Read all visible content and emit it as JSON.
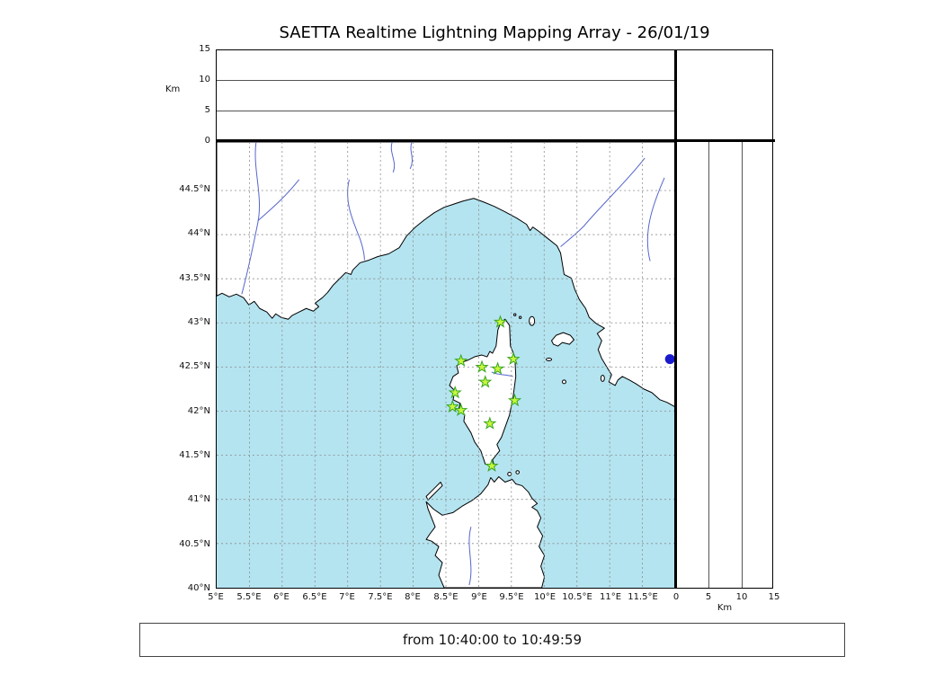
{
  "title": "SAETTA Realtime Lightning Mapping Array - 26/01/19",
  "time_range_label": "from 10:40:00 to 10:49:59",
  "top_panel": {
    "axis_label": "Km",
    "ticks": [
      "0",
      "5",
      "10",
      "15"
    ]
  },
  "right_panel": {
    "axis_label": "Km",
    "ticks": [
      "0",
      "5",
      "10",
      "15"
    ]
  },
  "map": {
    "lat_ticks": [
      "44.5°N",
      "44°N",
      "43.5°N",
      "43°N",
      "42.5°N",
      "42°N",
      "41.5°N",
      "41°N",
      "40.5°N",
      "40°N"
    ],
    "lon_ticks": [
      "5°E",
      "5.5°E",
      "6°E",
      "6.5°E",
      "7°E",
      "7.5°E",
      "8°E",
      "8.5°E",
      "9°E",
      "9.5°E",
      "10°E",
      "10.5°E",
      "11°E",
      "11.5°E"
    ],
    "lon_range": [
      5.0,
      12.0
    ],
    "lat_range": [
      40.0,
      45.05
    ],
    "sea_color": "#b4e4f0",
    "land_color": "#ffffff",
    "grid_color": "#8a8a8a",
    "river_color": "#5566cc",
    "station_fill": "#c8f73c",
    "station_stroke": "#35a520",
    "event_color": "#1a1acd",
    "stations": [
      {
        "lon": 9.33,
        "lat": 43.01
      },
      {
        "lon": 8.73,
        "lat": 42.57
      },
      {
        "lon": 9.05,
        "lat": 42.5
      },
      {
        "lon": 9.29,
        "lat": 42.48
      },
      {
        "lon": 9.53,
        "lat": 42.59
      },
      {
        "lon": 9.1,
        "lat": 42.33
      },
      {
        "lon": 8.64,
        "lat": 42.21
      },
      {
        "lon": 8.6,
        "lat": 42.05
      },
      {
        "lon": 8.73,
        "lat": 42.01
      },
      {
        "lon": 9.55,
        "lat": 42.12
      },
      {
        "lon": 9.17,
        "lat": 41.86
      },
      {
        "lon": 9.2,
        "lat": 41.38
      }
    ],
    "event_marker": {
      "lon": 11.92,
      "lat": 42.59
    }
  }
}
